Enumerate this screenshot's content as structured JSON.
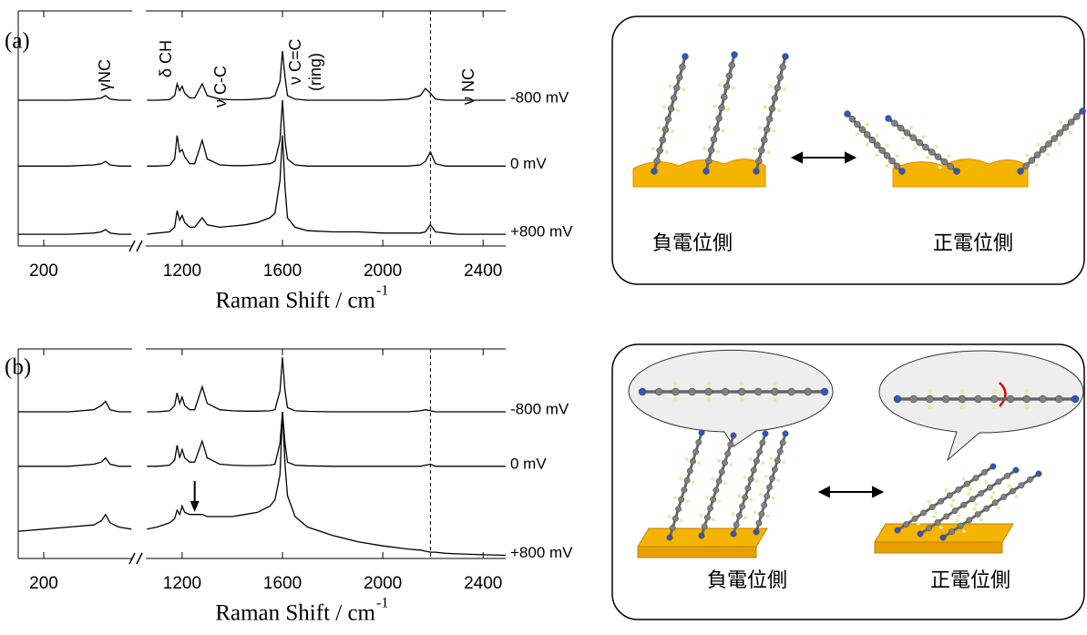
{
  "chart_data": [
    {
      "type": "line",
      "panel_label": "(a)",
      "x_label": "Raman Shift / cm",
      "x_label_sup": "-1",
      "xlim_segments": [
        [
          98,
          553
        ],
        [
          1055,
          2490
        ]
      ],
      "xticks": [
        200,
        1200,
        1600,
        2000,
        2400
      ],
      "ylim": [
        0,
        100
      ],
      "reference_line_x": 2190,
      "annotations": [
        "γNC",
        "δ CH",
        "ν C-C",
        "ν C=C",
        "(ring)",
        "ν NC"
      ],
      "x": [
        100,
        200,
        300,
        400,
        430,
        447,
        465,
        500,
        550,
        800,
        1060,
        1100,
        1150,
        1170,
        1180,
        1190,
        1200,
        1210,
        1230,
        1250,
        1280,
        1300,
        1350,
        1400,
        1450,
        1500,
        1550,
        1570,
        1590,
        1600,
        1610,
        1620,
        1650,
        1700,
        1800,
        1900,
        2000,
        2100,
        2150,
        2170,
        2190,
        2210,
        2250,
        2300,
        2400,
        2490
      ],
      "series": [
        {
          "name": "-800 mV",
          "color": "#000000",
          "values": [
            62,
            62,
            62,
            62.5,
            63,
            64,
            62.5,
            62,
            62,
            null,
            62,
            62,
            62.3,
            64,
            69,
            66,
            68,
            65,
            63,
            63,
            69,
            64,
            62.5,
            62.2,
            62.2,
            62.5,
            63,
            64,
            70,
            83,
            72,
            64,
            62.5,
            62,
            62,
            62,
            62,
            62.5,
            64,
            67,
            65,
            62.5,
            62,
            62,
            62,
            62
          ]
        },
        {
          "name": "0 mV",
          "color": "#000000",
          "values": [
            34,
            34,
            34,
            34.5,
            35,
            36,
            34.5,
            34,
            34,
            null,
            34,
            34,
            34.3,
            37,
            47,
            40,
            41,
            38,
            35,
            35,
            45,
            37,
            34.5,
            34.2,
            34.2,
            34.5,
            35,
            36,
            45,
            62,
            45,
            37,
            34.5,
            34,
            34,
            34,
            34,
            34,
            34.5,
            36,
            40,
            35,
            34,
            34,
            34,
            34
          ]
        },
        {
          "name": "+800 mV",
          "color": "#000000",
          "values": [
            5,
            5,
            5,
            5.5,
            6,
            7,
            5.5,
            5,
            5,
            null,
            5,
            5.5,
            6,
            8,
            15,
            11,
            13,
            10,
            8,
            8,
            12,
            9,
            8,
            8.5,
            9,
            10,
            12,
            14,
            28,
            47,
            25,
            12,
            8,
            6.5,
            6,
            6,
            5.5,
            5.5,
            5.5,
            6,
            9,
            6,
            5.5,
            5,
            5,
            5
          ]
        }
      ]
    },
    {
      "type": "line",
      "panel_label": "(b)",
      "x_label": "Raman Shift / cm",
      "x_label_sup": "-1",
      "xlim_segments": [
        [
          98,
          553
        ],
        [
          1055,
          2490
        ]
      ],
      "xticks": [
        200,
        1200,
        1600,
        2000,
        2400
      ],
      "ylim": [
        0,
        100
      ],
      "reference_line_x": 2190,
      "marker_x": 1250,
      "x": [
        100,
        200,
        300,
        400,
        430,
        447,
        465,
        500,
        550,
        800,
        1060,
        1100,
        1150,
        1170,
        1180,
        1190,
        1200,
        1210,
        1230,
        1250,
        1280,
        1300,
        1350,
        1400,
        1450,
        1500,
        1550,
        1570,
        1590,
        1600,
        1610,
        1620,
        1650,
        1700,
        1800,
        1900,
        2000,
        2100,
        2150,
        2170,
        2190,
        2210,
        2250,
        2300,
        2400,
        2490
      ],
      "series": [
        {
          "name": "-800 mV",
          "color": "#000000",
          "values": [
            70,
            70,
            70,
            71,
            73,
            75,
            71,
            70,
            70,
            null,
            70,
            70,
            70.5,
            73,
            79,
            74,
            77,
            73,
            71,
            71,
            82,
            74,
            71,
            70.5,
            70.3,
            70.3,
            70.5,
            71,
            80,
            96,
            80,
            72,
            70.5,
            70.2,
            70,
            70,
            70,
            70,
            70.5,
            71,
            70.5,
            70,
            70,
            70,
            70,
            70
          ]
        },
        {
          "name": "0 mV",
          "color": "#000000",
          "values": [
            44,
            44,
            44,
            45,
            46,
            48,
            45,
            44,
            44,
            null,
            44,
            44,
            44.5,
            47,
            54,
            48,
            52,
            48,
            46,
            46,
            56,
            48,
            45,
            44.5,
            44.3,
            44.3,
            44.5,
            45,
            55,
            70,
            55,
            46,
            44.5,
            44.2,
            44,
            44,
            44,
            44,
            44,
            44.5,
            45,
            44,
            44,
            44,
            44,
            44
          ]
        },
        {
          "name": "+800 mV",
          "color": "#000000",
          "values": [
            13,
            14,
            15,
            16,
            18,
            21,
            17,
            15,
            14,
            null,
            14,
            15,
            17,
            19,
            23,
            21,
            25,
            22,
            21,
            21,
            21,
            20,
            20,
            20,
            21,
            22,
            25,
            28,
            40,
            70,
            45,
            30,
            20,
            15,
            11,
            8,
            6,
            4.5,
            4,
            3.5,
            3,
            3,
            2.5,
            2.2,
            1.8,
            1.5
          ]
        }
      ]
    }
  ],
  "diagrams": [
    {
      "left_label": "負電位側",
      "right_label": "正電位側"
    },
    {
      "left_label": "負電位側",
      "right_label": "正電位側"
    }
  ]
}
